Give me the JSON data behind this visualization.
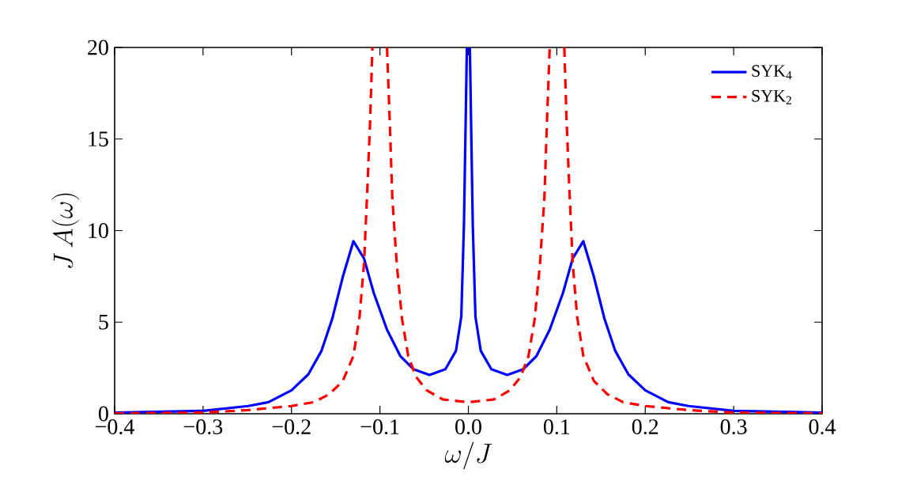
{
  "chart_data": {
    "type": "line",
    "xlabel": "\\omega/J",
    "ylabel": "J\\,A(\\omega)",
    "xlim": [
      -0.4,
      0.4
    ],
    "ylim": [
      0,
      20
    ],
    "xticks": [
      {
        "value": -0.4,
        "label": "−0.4"
      },
      {
        "value": -0.3,
        "label": "−0.3"
      },
      {
        "value": -0.2,
        "label": "−0.2"
      },
      {
        "value": -0.1,
        "label": "−0.1"
      },
      {
        "value": 0,
        "label": "0.0"
      },
      0.1,
      0.2,
      0.3,
      0.4
    ],
    "yticks": [
      0,
      5,
      10,
      15,
      20
    ],
    "grid": false,
    "legend": "top right",
    "marker": "none",
    "series": [
      {
        "name": "SYK$_{4}$",
        "color": "#0000ff",
        "line_style": "solid",
        "x": [
          -0.4,
          -0.3,
          -0.249,
          -0.226,
          -0.2,
          -0.181,
          -0.166,
          -0.154,
          -0.142,
          -0.13,
          -0.118,
          -0.107,
          -0.092,
          -0.077,
          -0.062,
          -0.044,
          -0.026,
          -0.014,
          -0.008,
          -0.005,
          -0.003,
          -0.0017,
          0,
          0.0017,
          0.003,
          0.005,
          0.008,
          0.014,
          0.026,
          0.044,
          0.062,
          0.077,
          0.092,
          0.107,
          0.118,
          0.13,
          0.142,
          0.154,
          0.166,
          0.181,
          0.2,
          0.226,
          0.249,
          0.3,
          0.4
        ],
        "values": [
          0.06,
          0.16,
          0.42,
          0.63,
          1.28,
          2.15,
          3.44,
          5.17,
          7.47,
          9.42,
          8.48,
          6.6,
          4.59,
          3.15,
          2.43,
          2.12,
          2.43,
          3.44,
          5.3,
          10.3,
          16.1,
          20,
          20,
          20,
          16.1,
          10.3,
          5.3,
          3.44,
          2.43,
          2.12,
          2.43,
          3.15,
          4.59,
          6.6,
          8.48,
          9.42,
          7.47,
          5.17,
          3.44,
          2.15,
          1.28,
          0.63,
          0.42,
          0.16,
          0.06
        ]
      },
      {
        "name": "SYK$_{2}$",
        "color": "#ff0000",
        "line_style": "dashed",
        "x": [
          -0.4,
          -0.3,
          -0.249,
          -0.2,
          -0.175,
          -0.157,
          -0.142,
          -0.13,
          -0.123,
          -0.118,
          -0.114,
          -0.111,
          -0.1085,
          -0.1,
          -0.092,
          -0.089,
          -0.086,
          -0.081,
          -0.075,
          -0.068,
          -0.059,
          -0.047,
          -0.029,
          0,
          0.029,
          0.047,
          0.059,
          0.068,
          0.075,
          0.081,
          0.086,
          0.089,
          0.092,
          0.1,
          0.1085,
          0.111,
          0.114,
          0.118,
          0.123,
          0.13,
          0.142,
          0.157,
          0.175,
          0.2,
          0.249,
          0.3,
          0.4
        ],
        "values": [
          0.02,
          0.06,
          0.2,
          0.42,
          0.63,
          1.07,
          1.79,
          3.15,
          5.3,
          8.2,
          12.5,
          16.1,
          20,
          null,
          20,
          16.1,
          11.8,
          8.2,
          5.17,
          3.15,
          2.0,
          1.28,
          0.78,
          0.63,
          0.78,
          1.28,
          2.0,
          3.15,
          5.17,
          8.2,
          11.8,
          16.1,
          20,
          null,
          20,
          16.1,
          12.5,
          8.2,
          5.3,
          3.15,
          1.79,
          1.07,
          0.63,
          0.42,
          0.2,
          0.06,
          0.02
        ]
      }
    ]
  }
}
